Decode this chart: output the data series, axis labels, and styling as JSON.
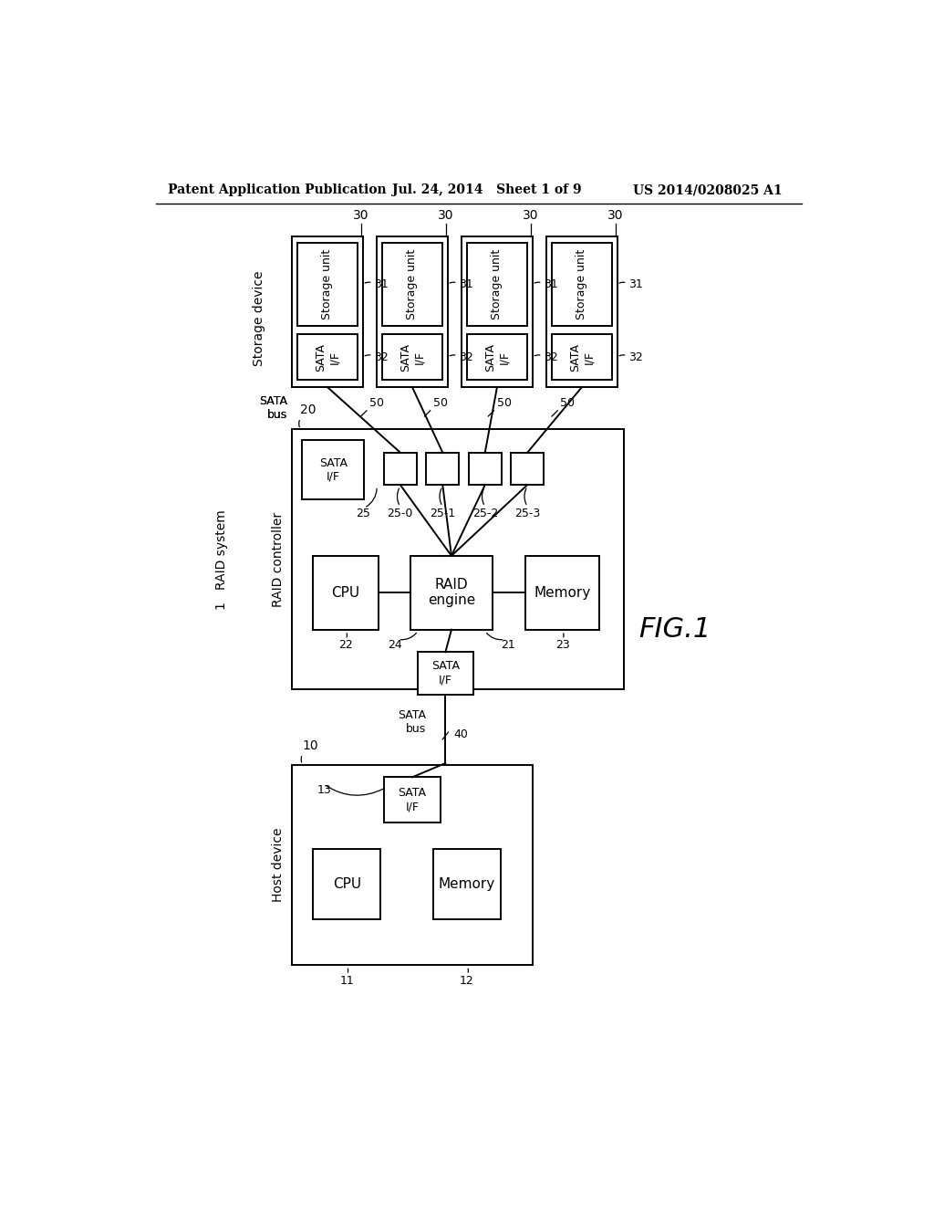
{
  "bg_color": "#ffffff",
  "header_left": "Patent Application Publication",
  "header_mid": "Jul. 24, 2014   Sheet 1 of 9",
  "header_right": "US 2014/0208025 A1",
  "fig_label": "FIG.1",
  "line_color": "#000000"
}
